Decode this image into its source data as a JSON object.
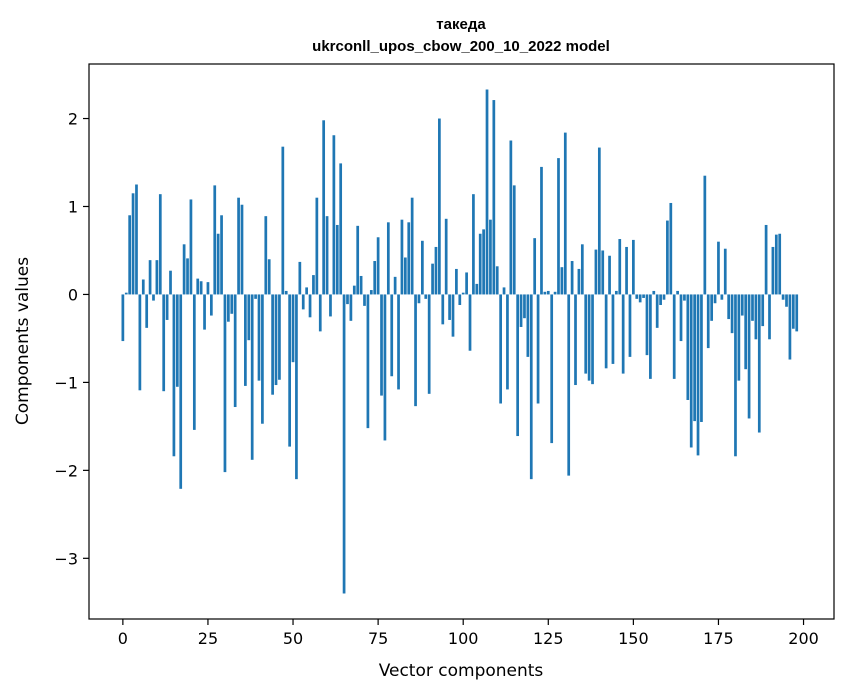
{
  "chart_data": {
    "type": "bar",
    "title_line1": "такеда",
    "title_line2": "ukrconll_upos_cbow_200_10_2022 model",
    "xlabel": "Vector components",
    "ylabel": "Components values",
    "xlim": [
      -9.95,
      208.95
    ],
    "ylim": [
      -3.69,
      2.62
    ],
    "xticks": [
      0,
      25,
      50,
      75,
      100,
      125,
      150,
      175,
      200
    ],
    "yticks": [
      -3,
      -2,
      -1,
      0,
      1,
      2
    ],
    "ytick_labels": [
      "−3",
      "−2",
      "−1",
      "0",
      "1",
      "2"
    ],
    "bar_color": "#1f77b4",
    "grid": false,
    "values": [
      -0.53,
      0.02,
      0.9,
      1.15,
      1.25,
      -1.09,
      0.17,
      -0.38,
      0.39,
      -0.07,
      0.39,
      1.14,
      -1.1,
      -0.29,
      0.27,
      -1.84,
      -1.05,
      -2.21,
      0.57,
      0.41,
      1.08,
      -1.54,
      0.18,
      0.15,
      -0.4,
      0.14,
      -0.24,
      1.24,
      0.69,
      0.9,
      -2.02,
      -0.31,
      -0.22,
      -1.28,
      1.1,
      1.02,
      -1.04,
      -0.52,
      -1.88,
      -0.05,
      -0.98,
      -1.47,
      0.89,
      0.4,
      -1.14,
      -1.03,
      -0.97,
      1.68,
      0.04,
      -1.73,
      -0.77,
      -2.1,
      0.37,
      -0.17,
      0.08,
      -0.26,
      0.22,
      1.1,
      -0.42,
      1.98,
      0.89,
      -0.25,
      1.81,
      0.79,
      1.49,
      -3.4,
      -0.11,
      -0.3,
      0.1,
      0.78,
      0.21,
      -0.13,
      -1.52,
      0.05,
      0.38,
      0.65,
      -1.15,
      -1.66,
      0.82,
      -0.93,
      0.2,
      -1.08,
      0.85,
      0.42,
      0.82,
      1.1,
      -1.27,
      -0.1,
      0.61,
      -0.05,
      -1.13,
      0.35,
      0.54,
      2.0,
      -0.34,
      0.86,
      -0.29,
      -0.48,
      0.29,
      -0.12,
      0.02,
      0.25,
      -0.64,
      1.14,
      0.12,
      0.69,
      0.74,
      2.33,
      0.85,
      2.21,
      0.32,
      -1.24,
      0.08,
      -1.08,
      1.75,
      1.24,
      -1.61,
      -0.37,
      -0.27,
      -0.71,
      -2.1,
      0.64,
      -1.24,
      1.45,
      0.03,
      0.04,
      -1.69,
      0.03,
      1.55,
      0.31,
      1.84,
      -2.06,
      0.38,
      -1.03,
      0.29,
      0.57,
      -0.9,
      -0.98,
      -1.02,
      0.51,
      1.67,
      0.5,
      -0.84,
      0.44,
      -0.79,
      0.04,
      0.63,
      -0.9,
      0.54,
      -0.71,
      0.62,
      -0.05,
      -0.09,
      -0.04,
      -0.69,
      -0.96,
      0.04,
      -0.38,
      -0.12,
      -0.06,
      0.84,
      1.04,
      -0.96,
      0.04,
      -0.53,
      -0.07,
      -1.2,
      -1.74,
      -1.44,
      -1.83,
      -1.45,
      1.35,
      -0.61,
      -0.3,
      -0.1,
      0.6,
      -0.06,
      0.52,
      -0.28,
      -0.44,
      -1.84,
      -0.98,
      -0.24,
      -0.85,
      -1.41,
      -0.3,
      -0.51,
      -1.57,
      -0.36,
      0.79,
      -0.51,
      0.54,
      0.68,
      0.69,
      -0.06,
      -0.14,
      -0.74,
      -0.39,
      -0.42
    ]
  }
}
